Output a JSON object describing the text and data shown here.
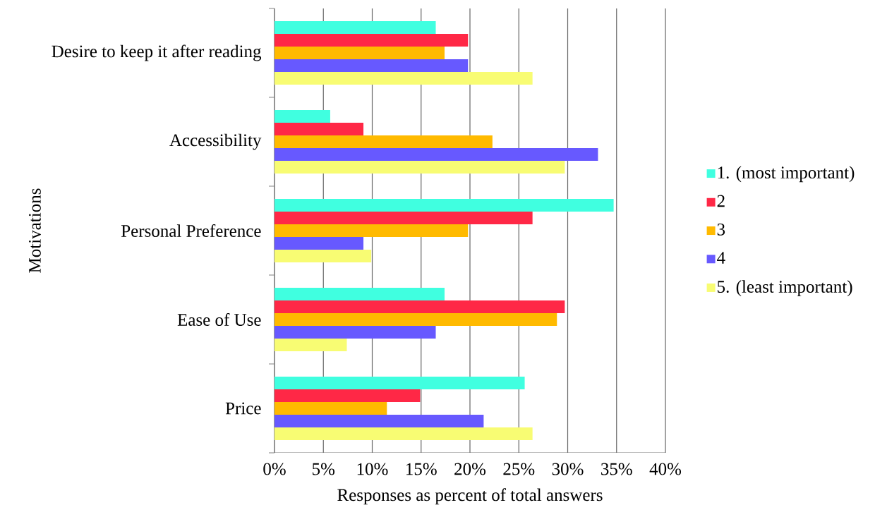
{
  "chart_data": {
    "type": "bar",
    "orientation": "horizontal",
    "xlabel": "Responses as percent of total answers",
    "ylabel": "Motivations",
    "categories": [
      "Desire to keep it after reading",
      "Accessibility",
      "Personal Preference",
      "Ease of Use",
      "Price"
    ],
    "series": [
      {
        "name": "1. (most important)",
        "color": "#40ffe0",
        "values": [
          16.5,
          5.7,
          34.7,
          17.4,
          25.6
        ]
      },
      {
        "name": "2",
        "color": "#ff2846",
        "values": [
          19.8,
          9.1,
          26.4,
          29.7,
          14.9
        ]
      },
      {
        "name": "3",
        "color": "#ffba00",
        "values": [
          17.4,
          22.3,
          19.8,
          28.9,
          11.5
        ]
      },
      {
        "name": "4",
        "color": "#6759ff",
        "values": [
          19.8,
          33.1,
          9.1,
          16.5,
          21.4
        ]
      },
      {
        "name": "5. (least important)",
        "color": "#f8fc73",
        "values": [
          26.4,
          29.7,
          9.9,
          7.4,
          26.4
        ]
      }
    ],
    "xlim": [
      0,
      40
    ],
    "xticks": [
      {
        "value": 0,
        "label": "0%"
      },
      {
        "value": 5,
        "label": "5%"
      },
      {
        "value": 10,
        "label": "10%"
      },
      {
        "value": 15,
        "label": "15%"
      },
      {
        "value": 20,
        "label": "20%"
      },
      {
        "value": 25,
        "label": "25%"
      },
      {
        "value": 30,
        "label": "30%"
      },
      {
        "value": 35,
        "label": "35%"
      },
      {
        "value": 40,
        "label": "40%"
      }
    ],
    "grid": "x",
    "legend": "right"
  }
}
